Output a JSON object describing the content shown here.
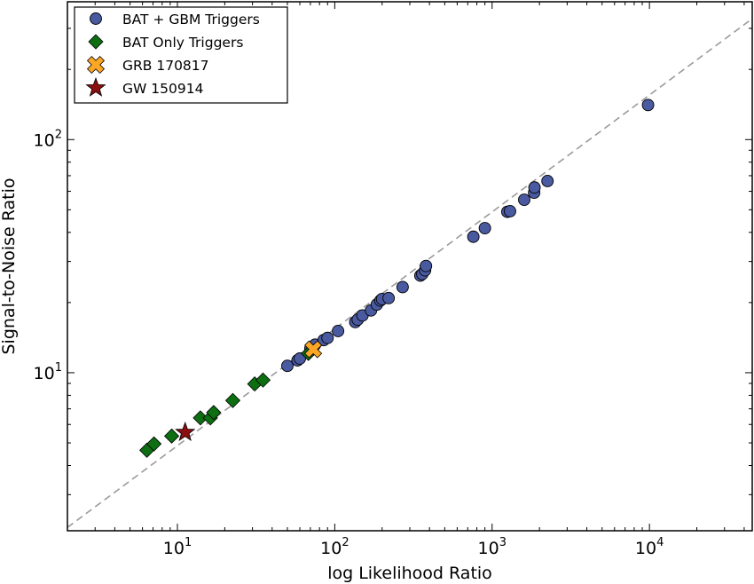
{
  "chart_data": {
    "type": "scatter",
    "xscale": "log",
    "yscale": "log",
    "xlim": [
      2,
      45000
    ],
    "ylim": [
      2.1,
      390
    ],
    "xlabel": "log Likelihood Ratio",
    "ylabel": "Signal-to-Noise Ratio",
    "x_ticks": [
      {
        "value": 10,
        "base": "10",
        "exp": "1"
      },
      {
        "value": 100,
        "base": "10",
        "exp": "2"
      },
      {
        "value": 1000,
        "base": "10",
        "exp": "3"
      },
      {
        "value": 10000,
        "base": "10",
        "exp": "4"
      }
    ],
    "y_ticks": [
      {
        "value": 10,
        "base": "10",
        "exp": "1"
      },
      {
        "value": 100,
        "base": "10",
        "exp": "2"
      }
    ],
    "grid": false,
    "legend_position": "top-left",
    "reference_line": {
      "style": "dashed",
      "color": "#999999",
      "points": [
        [
          2,
          2.17
        ],
        [
          45000,
          330
        ]
      ]
    },
    "series": [
      {
        "name": "BAT + GBM Triggers",
        "marker": "circle",
        "color": "#4a5aa0",
        "points": [
          [
            50,
            10.7
          ],
          [
            58,
            11.3
          ],
          [
            60,
            11.5
          ],
          [
            70,
            12.7
          ],
          [
            75,
            13.2
          ],
          [
            85,
            13.8
          ],
          [
            90,
            14.1
          ],
          [
            105,
            15.1
          ],
          [
            135,
            16.5
          ],
          [
            140,
            16.9
          ],
          [
            150,
            17.6
          ],
          [
            170,
            18.5
          ],
          [
            185,
            19.6
          ],
          [
            195,
            20.4
          ],
          [
            200,
            20.7
          ],
          [
            220,
            20.9
          ],
          [
            270,
            23.3
          ],
          [
            350,
            26.1
          ],
          [
            360,
            26.5
          ],
          [
            375,
            27.5
          ],
          [
            380,
            28.7
          ],
          [
            760,
            38.3
          ],
          [
            900,
            41.7
          ],
          [
            1250,
            49.0
          ],
          [
            1300,
            49.3
          ],
          [
            1600,
            55.2
          ],
          [
            1850,
            59.2
          ],
          [
            1860,
            62.3
          ],
          [
            2250,
            66.4
          ],
          [
            9800,
            140.7
          ]
        ]
      },
      {
        "name": "BAT Only Triggers",
        "marker": "diamond",
        "color": "#0d6e12",
        "points": [
          [
            6.4,
            4.65
          ],
          [
            7.1,
            4.95
          ],
          [
            9.2,
            5.35
          ],
          [
            14.0,
            6.4
          ],
          [
            16.2,
            6.4
          ],
          [
            17.0,
            6.75
          ],
          [
            22.5,
            7.6
          ],
          [
            31.0,
            8.95
          ],
          [
            35.0,
            9.3
          ],
          [
            68,
            12.1
          ]
        ]
      },
      {
        "name": "GRB 170817",
        "marker": "x",
        "color": "#fca626",
        "points": [
          [
            73,
            12.6
          ]
        ]
      },
      {
        "name": "GW 150914",
        "marker": "star",
        "color": "#8b0f10",
        "points": [
          [
            11.2,
            5.55
          ]
        ]
      }
    ]
  }
}
